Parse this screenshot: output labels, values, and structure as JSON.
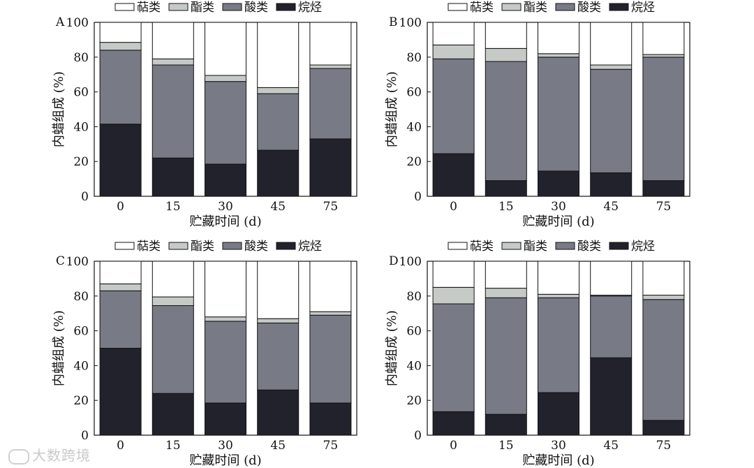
{
  "chart_data": [
    {
      "type": "bar",
      "stacked": true,
      "panel_label": "A",
      "legend": [
        "萜类",
        "酯类",
        "酸类",
        "烷烃"
      ],
      "legend_position": "top",
      "categories": [
        "0",
        "15",
        "30",
        "45",
        "75"
      ],
      "series": [
        {
          "name": "烷烃",
          "values": [
            41.5,
            22,
            18.5,
            26.5,
            33
          ],
          "color": "#22222c"
        },
        {
          "name": "酸类",
          "values": [
            42.5,
            53.5,
            47.5,
            32.5,
            40.5
          ],
          "color": "#787b86"
        },
        {
          "name": "酯类",
          "values": [
            4.5,
            3.5,
            3.5,
            3.5,
            2
          ],
          "color": "#c6cac7"
        },
        {
          "name": "萜类",
          "values": [
            11.5,
            21,
            30.5,
            37.5,
            24.5
          ],
          "color": "#ffffff"
        }
      ],
      "xlabel": "贮藏时间 (d)",
      "ylabel": "内蜡组成 (%)",
      "ylim": [
        0,
        100
      ],
      "yticks": [
        "0",
        "20",
        "40",
        "60",
        "80",
        "100"
      ]
    },
    {
      "type": "bar",
      "stacked": true,
      "panel_label": "B",
      "legend": [
        "萜类",
        "酯类",
        "酸类",
        "烷烃"
      ],
      "legend_position": "top",
      "categories": [
        "0",
        "15",
        "30",
        "45",
        "75"
      ],
      "series": [
        {
          "name": "烷烃",
          "values": [
            24.5,
            9,
            14.5,
            13.5,
            9
          ],
          "color": "#22222c"
        },
        {
          "name": "酸类",
          "values": [
            54.5,
            68.5,
            65.5,
            59.5,
            71
          ],
          "color": "#787b86"
        },
        {
          "name": "酯类",
          "values": [
            8,
            7.5,
            2,
            2.5,
            1.5
          ],
          "color": "#c6cac7"
        },
        {
          "name": "萜类",
          "values": [
            13,
            15,
            18,
            24.5,
            18.5
          ],
          "color": "#ffffff"
        }
      ],
      "xlabel": "贮藏时间 (d)",
      "ylabel": "内蜡组成 (%)",
      "ylim": [
        0,
        100
      ],
      "yticks": [
        "0",
        "20",
        "40",
        "60",
        "80",
        "100"
      ]
    },
    {
      "type": "bar",
      "stacked": true,
      "panel_label": "C",
      "legend": [
        "萜类",
        "酯类",
        "酸类",
        "烷烃"
      ],
      "legend_position": "top",
      "categories": [
        "0",
        "15",
        "30",
        "45",
        "75"
      ],
      "series": [
        {
          "name": "烷烃",
          "values": [
            50,
            24,
            18.5,
            26,
            18.5
          ],
          "color": "#22222c"
        },
        {
          "name": "酸类",
          "values": [
            33,
            50.5,
            47,
            38.5,
            50.5
          ],
          "color": "#787b86"
        },
        {
          "name": "酯类",
          "values": [
            4,
            5,
            2.5,
            2.5,
            2
          ],
          "color": "#c6cac7"
        },
        {
          "name": "萜类",
          "values": [
            13,
            20.5,
            32,
            33,
            29
          ],
          "color": "#ffffff"
        }
      ],
      "xlabel": "贮藏时间 (d)",
      "ylabel": "内蜡组成 (%)",
      "ylim": [
        0,
        100
      ],
      "yticks": [
        "0",
        "20",
        "40",
        "60",
        "80",
        "100"
      ]
    },
    {
      "type": "bar",
      "stacked": true,
      "panel_label": "D",
      "legend": [
        "萜类",
        "酯类",
        "酸类",
        "烷烃"
      ],
      "legend_position": "top",
      "categories": [
        "0",
        "15",
        "30",
        "45",
        "75"
      ],
      "series": [
        {
          "name": "烷烃",
          "values": [
            13.5,
            12,
            24.5,
            44.5,
            8.5
          ],
          "color": "#22222c"
        },
        {
          "name": "酸类",
          "values": [
            62,
            67,
            54.5,
            35.5,
            69.5
          ],
          "color": "#787b86"
        },
        {
          "name": "酯类",
          "values": [
            9.5,
            5.5,
            2,
            0.5,
            2.5
          ],
          "color": "#c6cac7"
        },
        {
          "name": "萜类",
          "values": [
            15,
            15.5,
            19,
            19.5,
            19.5
          ],
          "color": "#ffffff"
        }
      ],
      "xlabel": "贮藏时间 (d)",
      "ylabel": "内蜡组成 (%)",
      "ylim": [
        0,
        100
      ],
      "yticks": [
        "0",
        "20",
        "40",
        "60",
        "80",
        "100"
      ]
    }
  ],
  "watermark": {
    "text": "大数跨境",
    "icon": "brand-logo-icon"
  }
}
